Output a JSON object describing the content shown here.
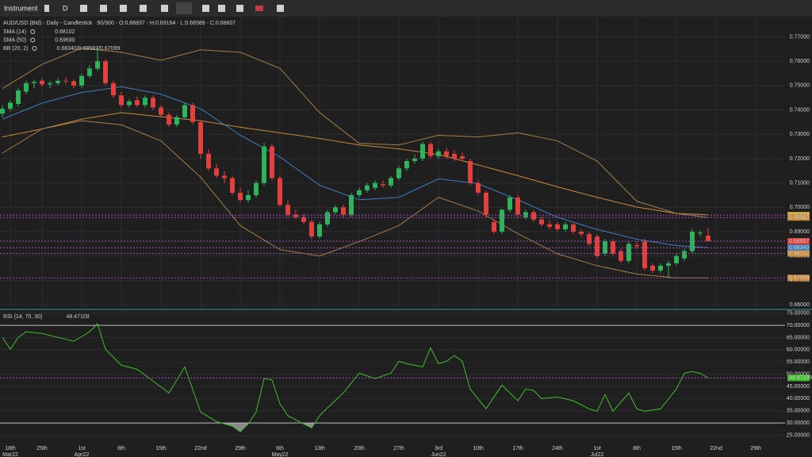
{
  "toolbar": {
    "instrument": "Instrument",
    "interval": "D"
  },
  "chart_data": [
    {
      "type": "candlestick",
      "title": "AUD/USD (Bid) - Daily - Candlestick",
      "subtitle": "90/300 - O:0.68837 - H:0.69164 - L:0.68589 - C:0.68607",
      "indicators": [
        {
          "name": "SMA (14)",
          "value_label": "0.68102"
        },
        {
          "name": "SMA (50)",
          "value_label": "0.69690"
        },
        {
          "name": "BB (20, 2)",
          "value_label": "0.68340/0.69582/0.67099"
        }
      ],
      "up_color": "#2fb35b",
      "down_color": "#e0413d",
      "candles": [
        [
          0.7385,
          0.742,
          0.737,
          0.7405
        ],
        [
          0.7405,
          0.744,
          0.7395,
          0.743
        ],
        [
          0.7425,
          0.749,
          0.7415,
          0.748
        ],
        [
          0.7475,
          0.752,
          0.7465,
          0.751
        ],
        [
          0.751,
          0.7525,
          0.749,
          0.7515
        ],
        [
          0.752,
          0.753,
          0.7495,
          0.7505
        ],
        [
          0.7505,
          0.752,
          0.749,
          0.751
        ],
        [
          0.751,
          0.753,
          0.75,
          0.752
        ],
        [
          0.752,
          0.7535,
          0.7505,
          0.7518
        ],
        [
          0.7518,
          0.7525,
          0.749,
          0.75
        ],
        [
          0.75,
          0.755,
          0.749,
          0.754
        ],
        [
          0.754,
          0.7585,
          0.753,
          0.757
        ],
        [
          0.757,
          0.766,
          0.756,
          0.76
        ],
        [
          0.76,
          0.761,
          0.75,
          0.751
        ],
        [
          0.751,
          0.752,
          0.745,
          0.746
        ],
        [
          0.746,
          0.7475,
          0.741,
          0.742
        ],
        [
          0.742,
          0.7445,
          0.741,
          0.7435
        ],
        [
          0.744,
          0.7455,
          0.741,
          0.742
        ],
        [
          0.742,
          0.746,
          0.741,
          0.745
        ],
        [
          0.745,
          0.746,
          0.74,
          0.741
        ],
        [
          0.741,
          0.742,
          0.737,
          0.738
        ],
        [
          0.738,
          0.739,
          0.733,
          0.734
        ],
        [
          0.734,
          0.738,
          0.733,
          0.737
        ],
        [
          0.737,
          0.743,
          0.736,
          0.742
        ],
        [
          0.742,
          0.743,
          0.734,
          0.735
        ],
        [
          0.735,
          0.736,
          0.72,
          0.722
        ],
        [
          0.722,
          0.724,
          0.715,
          0.716
        ],
        [
          0.716,
          0.718,
          0.712,
          0.713
        ],
        [
          0.713,
          0.715,
          0.71,
          0.712
        ],
        [
          0.712,
          0.713,
          0.705,
          0.706
        ],
        [
          0.706,
          0.708,
          0.702,
          0.703
        ],
        [
          0.703,
          0.707,
          0.702,
          0.705
        ],
        [
          0.705,
          0.711,
          0.704,
          0.71
        ],
        [
          0.71,
          0.7265,
          0.709,
          0.725
        ],
        [
          0.725,
          0.726,
          0.711,
          0.712
        ],
        [
          0.712,
          0.713,
          0.7,
          0.701
        ],
        [
          0.701,
          0.703,
          0.696,
          0.697
        ],
        [
          0.697,
          0.699,
          0.695,
          0.696
        ],
        [
          0.696,
          0.6975,
          0.693,
          0.694
        ],
        [
          0.694,
          0.695,
          0.687,
          0.688
        ],
        [
          0.688,
          0.694,
          0.687,
          0.693
        ],
        [
          0.693,
          0.699,
          0.692,
          0.698
        ],
        [
          0.698,
          0.701,
          0.697,
          0.7
        ],
        [
          0.7,
          0.701,
          0.696,
          0.697
        ],
        [
          0.697,
          0.706,
          0.696,
          0.705
        ],
        [
          0.705,
          0.708,
          0.704,
          0.707
        ],
        [
          0.707,
          0.71,
          0.706,
          0.709
        ],
        [
          0.708,
          0.711,
          0.707,
          0.71
        ],
        [
          0.7095,
          0.711,
          0.708,
          0.709
        ],
        [
          0.709,
          0.713,
          0.708,
          0.712
        ],
        [
          0.712,
          0.717,
          0.711,
          0.716
        ],
        [
          0.716,
          0.72,
          0.715,
          0.719
        ],
        [
          0.719,
          0.7215,
          0.718,
          0.72
        ],
        [
          0.72,
          0.727,
          0.719,
          0.726
        ],
        [
          0.726,
          0.727,
          0.72,
          0.721
        ],
        [
          0.721,
          0.724,
          0.72,
          0.723
        ],
        [
          0.723,
          0.7245,
          0.72,
          0.721
        ],
        [
          0.722,
          0.7235,
          0.719,
          0.72
        ],
        [
          0.721,
          0.7225,
          0.719,
          0.72
        ],
        [
          0.719,
          0.72,
          0.709,
          0.71
        ],
        [
          0.71,
          0.711,
          0.705,
          0.706
        ],
        [
          0.706,
          0.707,
          0.696,
          0.697
        ],
        [
          0.694,
          0.695,
          0.689,
          0.69
        ],
        [
          0.69,
          0.6995,
          0.689,
          0.699
        ],
        [
          0.699,
          0.705,
          0.698,
          0.704
        ],
        [
          0.704,
          0.705,
          0.696,
          0.697
        ],
        [
          0.696,
          0.699,
          0.695,
          0.698
        ],
        [
          0.698,
          0.699,
          0.694,
          0.695
        ],
        [
          0.695,
          0.696,
          0.692,
          0.693
        ],
        [
          0.693,
          0.6945,
          0.691,
          0.692
        ],
        [
          0.693,
          0.694,
          0.69,
          0.691
        ],
        [
          0.691,
          0.694,
          0.69,
          0.693
        ],
        [
          0.693,
          0.6935,
          0.689,
          0.69
        ],
        [
          0.69,
          0.691,
          0.688,
          0.689
        ],
        [
          0.689,
          0.69,
          0.684,
          0.685
        ],
        [
          0.688,
          0.689,
          0.679,
          0.68
        ],
        [
          0.681,
          0.687,
          0.68,
          0.686
        ],
        [
          0.686,
          0.687,
          0.68,
          0.681
        ],
        [
          0.682,
          0.683,
          0.677,
          0.678
        ],
        [
          0.678,
          0.686,
          0.677,
          0.685
        ],
        [
          0.6845,
          0.686,
          0.683,
          0.684
        ],
        [
          0.686,
          0.687,
          0.674,
          0.675
        ],
        [
          0.676,
          0.677,
          0.673,
          0.674
        ],
        [
          0.674,
          0.677,
          0.673,
          0.676
        ],
        [
          0.676,
          0.678,
          0.671,
          0.677
        ],
        [
          0.677,
          0.681,
          0.676,
          0.68
        ],
        [
          0.679,
          0.683,
          0.678,
          0.682
        ],
        [
          0.682,
          0.691,
          0.681,
          0.69
        ],
        [
          0.6895,
          0.6905,
          0.688,
          0.6896
        ],
        [
          0.68837,
          0.69164,
          0.68589,
          0.68607
        ]
      ],
      "lines": [
        {
          "name": "SMA (50)",
          "color": "#c8893a",
          "x": [
            0,
            5,
            10,
            15,
            20,
            25,
            30,
            35,
            40,
            45,
            50,
            55,
            60,
            65,
            70,
            75,
            80,
            85,
            89
          ],
          "values": [
            0.7289,
            0.7322,
            0.7362,
            0.7389,
            0.7372,
            0.7356,
            0.7329,
            0.7306,
            0.7283,
            0.7256,
            0.724,
            0.7217,
            0.7174,
            0.713,
            0.7084,
            0.7041,
            0.7001,
            0.6975,
            0.6969
          ]
        },
        {
          "name": "BB (20, 2)",
          "color": "#3d7fc1",
          "x": [
            0,
            5,
            10,
            15,
            20,
            25,
            30,
            35,
            40,
            45,
            50,
            55,
            60,
            65,
            70,
            75,
            80,
            85,
            89
          ],
          "values": [
            0.7362,
            0.7428,
            0.7472,
            0.7495,
            0.7465,
            0.7405,
            0.7296,
            0.7207,
            0.7091,
            0.7031,
            0.7041,
            0.7117,
            0.7097,
            0.7031,
            0.6959,
            0.6909,
            0.6869,
            0.6843,
            0.6834
          ]
        },
        {
          "name": "BB (20, 2)",
          "color": "#a57f45",
          "x": [
            0,
            5,
            10,
            15,
            20,
            25,
            30,
            35,
            40,
            45,
            50,
            55,
            60,
            65,
            70,
            75,
            80,
            85,
            89
          ],
          "values": [
            0.7488,
            0.7587,
            0.7654,
            0.7637,
            0.7604,
            0.7647,
            0.7637,
            0.7571,
            0.7389,
            0.7263,
            0.7256,
            0.7296,
            0.7289,
            0.7306,
            0.7273,
            0.719,
            0.7025,
            0.6975,
            0.6958
          ]
        },
        {
          "name": "BB (20, 2)",
          "color": "#a57f45",
          "x": [
            0,
            5,
            10,
            15,
            20,
            25,
            30,
            35,
            40,
            45,
            50,
            55,
            60,
            65,
            70,
            75,
            80,
            85,
            89
          ],
          "values": [
            0.7223,
            0.7322,
            0.7356,
            0.7339,
            0.7273,
            0.7124,
            0.6925,
            0.6826,
            0.68,
            0.6859,
            0.6925,
            0.7041,
            0.6985,
            0.6892,
            0.6809,
            0.676,
            0.6726,
            0.671,
            0.671
          ]
        }
      ],
      "price_tags": [
        {
          "value": 0.6968,
          "label": "0.69680",
          "color": "#d9a520"
        },
        {
          "value": 0.69582,
          "label": "0.69582",
          "color": "#c8893a"
        },
        {
          "value": 0.68607,
          "label": "0.68607",
          "color": "#e0413d"
        },
        {
          "value": 0.6834,
          "label": "0.68340",
          "color": "#3d7fc1"
        },
        {
          "value": 0.68102,
          "label": "0.68102",
          "color": "#c8893a"
        },
        {
          "value": 0.67099,
          "label": "0.67099",
          "color": "#c8893a"
        }
      ],
      "xlim": [
        -0.3,
        98.7
      ],
      "ylim": [
        0.6587,
        0.778
      ],
      "yticks": [
        {
          "value": 0.77,
          "label": "0.77000"
        },
        {
          "value": 0.76,
          "label": "0.76000"
        },
        {
          "value": 0.75,
          "label": "0.75000"
        },
        {
          "value": 0.74,
          "label": "0.74000"
        },
        {
          "value": 0.73,
          "label": "0.73000"
        },
        {
          "value": 0.72,
          "label": "0.72000"
        },
        {
          "value": 0.71,
          "label": "0.71000"
        },
        {
          "value": 0.7,
          "label": "0.70000"
        },
        {
          "value": 0.69,
          "label": "0.69000"
        },
        {
          "value": 0.68,
          "label": "0.68000"
        },
        {
          "value": 0.67,
          "label": "0.67000"
        },
        {
          "value": 0.66,
          "label": "0.66000"
        }
      ],
      "xticks": [
        {
          "value": 1,
          "label": "18th"
        },
        {
          "value": 5,
          "label": "25th"
        },
        {
          "value": 10,
          "label": "1st"
        },
        {
          "value": 15,
          "label": "8th"
        },
        {
          "value": 20,
          "label": "15th"
        },
        {
          "value": 25,
          "label": "22nd"
        },
        {
          "value": 30,
          "label": "29th"
        },
        {
          "value": 35,
          "label": "6th"
        },
        {
          "value": 40,
          "label": "13th"
        },
        {
          "value": 45,
          "label": "20th"
        },
        {
          "value": 50,
          "label": "27th"
        },
        {
          "value": 55,
          "label": "3rd"
        },
        {
          "value": 60,
          "label": "10th"
        },
        {
          "value": 65,
          "label": "17th"
        },
        {
          "value": 70,
          "label": "24th"
        },
        {
          "value": 75,
          "label": "1st"
        },
        {
          "value": 80,
          "label": "8th"
        },
        {
          "value": 85,
          "label": "15th"
        },
        {
          "value": 90,
          "label": "22nd"
        },
        {
          "value": 95,
          "label": "29th"
        }
      ],
      "month_labels": [
        {
          "value": 1,
          "label": "Mar22"
        },
        {
          "value": 10,
          "label": "Apr22"
        },
        {
          "value": 35,
          "label": "May22"
        },
        {
          "value": 55,
          "label": "Jun22"
        },
        {
          "value": 75,
          "label": "Jul22"
        }
      ]
    },
    {
      "type": "line",
      "title": "RSI (14, 70, 30)",
      "value_label": "48.47109",
      "color": "#3fbf2a",
      "x": [
        0,
        1,
        2,
        3,
        5,
        7,
        9,
        11,
        12,
        13,
        15,
        17,
        19,
        21,
        23,
        25,
        27,
        29,
        30,
        31,
        32,
        33,
        34,
        35,
        36,
        38,
        39,
        40,
        41,
        43,
        45,
        47,
        49,
        50,
        51,
        53,
        54,
        55,
        56,
        57,
        58,
        59,
        61,
        62,
        63,
        64,
        65,
        66,
        67,
        68,
        70,
        72,
        74,
        75,
        76,
        77,
        79,
        80,
        81,
        83,
        85,
        86,
        87,
        88,
        89
      ],
      "values": [
        65.1,
        60.2,
        65.1,
        67.4,
        66.7,
        65.1,
        63.5,
        67.4,
        70.7,
        60.2,
        53.7,
        52.0,
        47.2,
        42.3,
        53.0,
        34.5,
        30.6,
        28.7,
        26.4,
        29.6,
        34.5,
        48.2,
        47.6,
        37.9,
        33.0,
        29.6,
        28.0,
        33.0,
        36.2,
        42.3,
        50.4,
        48.2,
        50.4,
        55.3,
        54.3,
        53.0,
        60.8,
        54.3,
        55.3,
        57.6,
        55.3,
        43.9,
        35.8,
        40.7,
        45.5,
        42.3,
        39.1,
        43.9,
        43.3,
        40.0,
        40.7,
        39.1,
        35.8,
        34.8,
        41.7,
        34.8,
        42.3,
        35.8,
        34.8,
        35.8,
        43.9,
        50.4,
        51.1,
        50.4,
        48.47109
      ],
      "levels": [
        70,
        30
      ],
      "tag": {
        "value": 48.47109,
        "label": "48.47109",
        "color": "#3fbf2a"
      },
      "xlim": [
        -0.3,
        98.7
      ],
      "ylim": [
        21.9,
        75.9
      ],
      "yticks": [
        {
          "value": 75,
          "label": "75.00000"
        },
        {
          "value": 70,
          "label": "70.00000"
        },
        {
          "value": 65,
          "label": "65.00000"
        },
        {
          "value": 60,
          "label": "60.00000"
        },
        {
          "value": 55,
          "label": "55.00000"
        },
        {
          "value": 50,
          "label": "50.00000"
        },
        {
          "value": 45,
          "label": "45.00000"
        },
        {
          "value": 40,
          "label": "40.00000"
        },
        {
          "value": 35,
          "label": "35.00000"
        },
        {
          "value": 30,
          "label": "30.00000"
        },
        {
          "value": 25,
          "label": "25.00000"
        }
      ]
    }
  ]
}
